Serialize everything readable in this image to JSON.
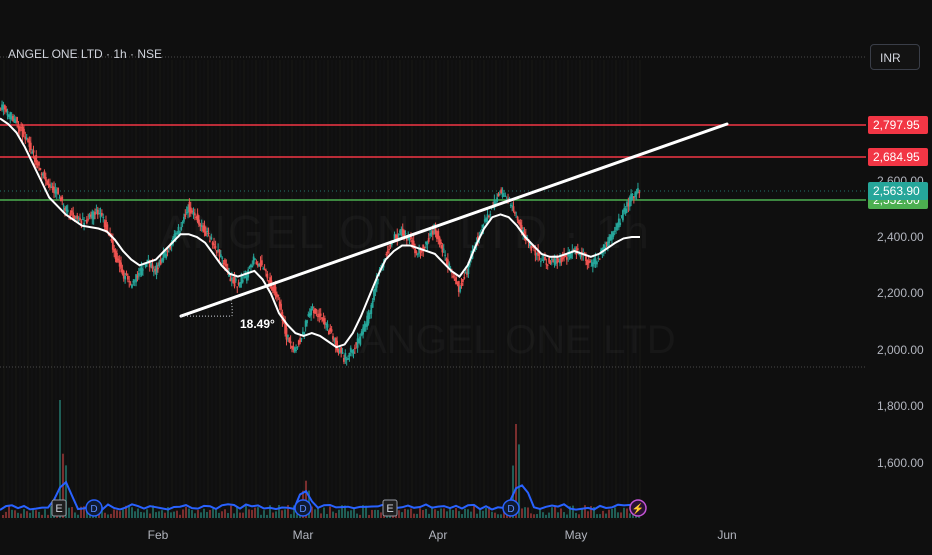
{
  "header": {
    "symbol_title": "ANGEL ONE LTD · 1h · NSE",
    "currency_button": "INR"
  },
  "colors": {
    "background": "#0f0f0f",
    "resistance_line": "#f23645",
    "support_line": "#4caf50",
    "current_price_tag": "#26a69a",
    "trendline": "#ffffff",
    "moving_average": "#ffffff",
    "volume_ma": "#2962ff",
    "candle_up": "#26a69a",
    "candle_down": "#ef5350"
  },
  "chart_data": {
    "type": "line",
    "title": "ANGEL ONE LTD · 1h · NSE",
    "xlabel": "",
    "ylabel": "",
    "x_tick_labels": [
      "Feb",
      "Mar",
      "Apr",
      "May",
      "Jun"
    ],
    "y_tick_labels": [
      "2,600.00",
      "2,400.00",
      "2,200.00",
      "2,000.00",
      "1,800.00",
      "1,600.00"
    ],
    "ylim": [
      1480,
      2900
    ],
    "grid": false,
    "price_lines": [
      {
        "label": "2,797.95",
        "value": 2797.95,
        "color": "#f23645"
      },
      {
        "label": "2,684.95",
        "value": 2684.95,
        "color": "#f23645"
      },
      {
        "label": "2,552.00",
        "value": 2552.0,
        "color": "#4caf50"
      }
    ],
    "current_price": {
      "label": "2,563.90",
      "value": 2563.9
    },
    "trendline": {
      "start": {
        "date": "Feb 1",
        "value": 2120
      },
      "end": {
        "date": "May 26",
        "value": 2800
      },
      "angle_label": "18.49°"
    },
    "series": [
      {
        "values": [
          2870,
          2835,
          2810,
          2760,
          2700,
          2640,
          2580,
          2560,
          2500,
          2470,
          2450,
          2470,
          2490,
          2440,
          2350,
          2270,
          2230,
          2270,
          2310,
          2280,
          2330,
          2380,
          2430,
          2510,
          2470,
          2420,
          2380,
          2330,
          2260,
          2230,
          2260,
          2320,
          2300,
          2240,
          2180,
          2050,
          2000,
          2060,
          2150,
          2120,
          2080,
          2020,
          1970,
          2000,
          2040,
          2120,
          2250,
          2330,
          2390,
          2420,
          2390,
          2340,
          2380,
          2430,
          2360,
          2280,
          2220,
          2280,
          2380,
          2440,
          2500,
          2560,
          2540,
          2460,
          2400,
          2360,
          2320,
          2310,
          2320,
          2330,
          2350,
          2340,
          2300,
          2320,
          2380,
          2430,
          2480,
          2540,
          2570
        ]
      },
      {
        "values": [
          2820,
          2800,
          2770,
          2720,
          2660,
          2600,
          2540,
          2510,
          2480,
          2460,
          2440,
          2435,
          2430,
          2420,
          2390,
          2350,
          2320,
          2300,
          2310,
          2320,
          2350,
          2380,
          2410,
          2410,
          2400,
          2380,
          2340,
          2300,
          2270,
          2260,
          2270,
          2280,
          2250,
          2200,
          2130,
          2090,
          2060,
          2050,
          2060,
          2050,
          2030,
          2010,
          2020,
          2060,
          2120,
          2190,
          2260,
          2320,
          2350,
          2370,
          2370,
          2360,
          2350,
          2340,
          2310,
          2280,
          2260,
          2300,
          2370,
          2430,
          2470,
          2480,
          2470,
          2440,
          2400,
          2370,
          2340,
          2330,
          2330,
          2340,
          2350,
          2340,
          2330,
          2340,
          2360,
          2380,
          2395,
          2400,
          2400
        ]
      }
    ],
    "volume": {
      "markers": [
        {
          "label": "E",
          "type": "earnings"
        },
        {
          "label": "D",
          "type": "dividend"
        },
        {
          "label": "D",
          "type": "dividend"
        },
        {
          "label": "E",
          "type": "earnings"
        },
        {
          "label": "D",
          "type": "dividend"
        },
        {
          "label": "⚡",
          "type": "event"
        }
      ]
    }
  },
  "watermark": {
    "line1": "ANGEL ONE LTD · 1h",
    "line2": "ANGEL ONE LTD"
  }
}
